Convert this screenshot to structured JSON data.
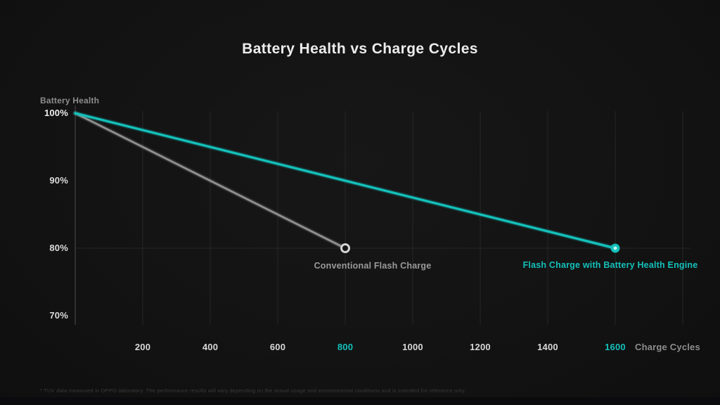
{
  "title": "Battery Health vs Charge Cycles",
  "footnote": "* TUV data measured in OPPO laboratory. The performance results will vary depending on the actual usage and environmental conditions and is intended for reference only.",
  "colors": {
    "accent_teal": "#14c0ba",
    "line_gray": "#8f8f8f",
    "tick_white": "#d8d8d8",
    "axis_label_gray": "#8d8d8d",
    "grid": "#262626",
    "background": "#131313"
  },
  "chart_data": {
    "type": "line",
    "title": "Battery Health vs Charge Cycles",
    "xlabel": "Charge Cycles",
    "ylabel": "Battery Health",
    "xlim": [
      0,
      1800
    ],
    "ylim": [
      70,
      100
    ],
    "yticks": [
      100,
      90,
      80,
      70
    ],
    "ytick_suffix": "%",
    "xticks": [
      200,
      400,
      600,
      800,
      1000,
      1200,
      1400,
      1600
    ],
    "xticks_highlighted_teal": [
      800,
      1600
    ],
    "x_gridlines": [
      200,
      400,
      600,
      800,
      1000,
      1200,
      1400,
      1600,
      1800
    ],
    "y_gridlines": [
      80
    ],
    "grid": true,
    "legend_position": "labels-below-line-endpoints",
    "series": [
      {
        "name": "Conventional Flash Charge",
        "color": "#8f8f8f",
        "marker": "ring",
        "points": [
          [
            0,
            100
          ],
          [
            800,
            80
          ]
        ]
      },
      {
        "name": "Flash Charge with Battery Health Engine",
        "color": "#14c0ba",
        "marker": "dot",
        "points": [
          [
            0,
            100
          ],
          [
            1600,
            80
          ]
        ]
      }
    ]
  }
}
